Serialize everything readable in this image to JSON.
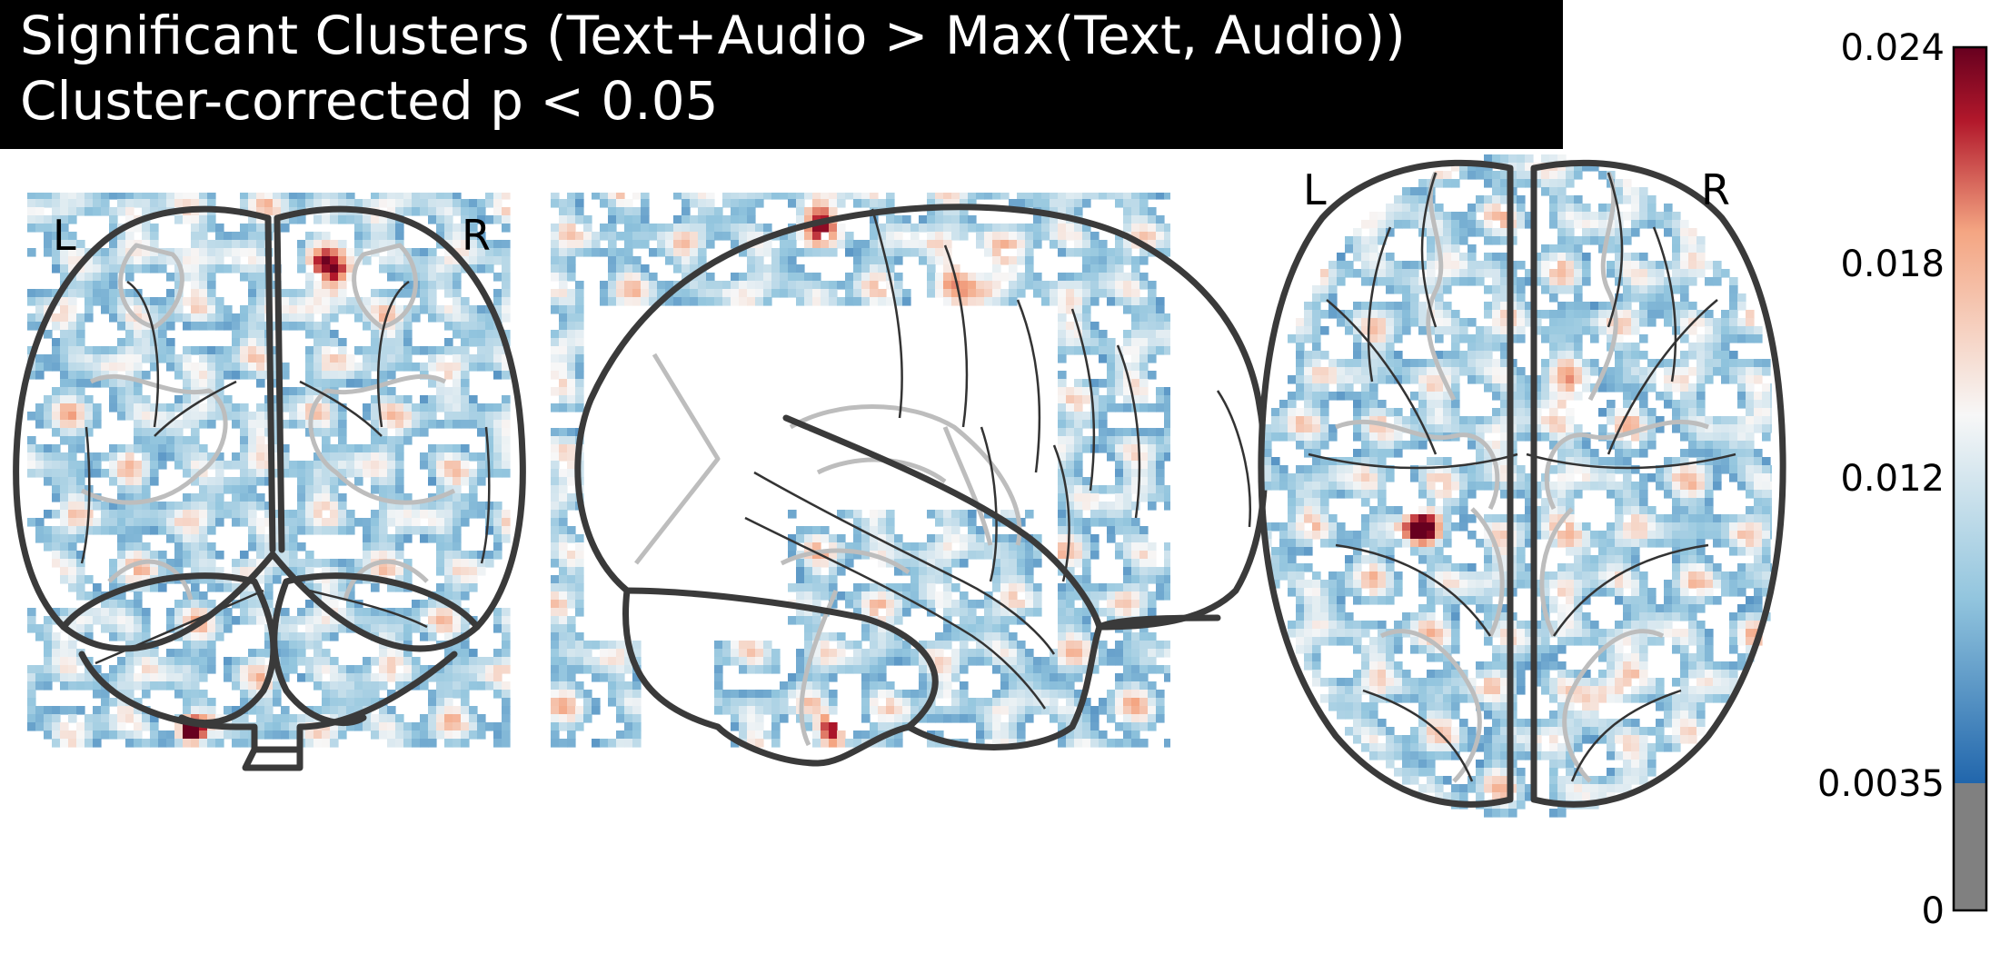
{
  "title": {
    "line1": "Significant Clusters (Text+Audio > Max(Text, Audio))",
    "line2": "Cluster-corrected p < 0.05"
  },
  "views": {
    "coronal": {
      "left_label": "L",
      "right_label": "R"
    },
    "sagittal": {},
    "axial": {
      "left_label": "L",
      "right_label": "R"
    }
  },
  "colorbar": {
    "colormap": "RdBu_r",
    "threshold": 0.0035,
    "below_threshold_color": "#808080",
    "ticks": [
      "0.024",
      "0.018",
      "0.012",
      "0.0035",
      "0"
    ],
    "min": 0,
    "max": 0.024
  },
  "colors": {
    "low": "#2166ac",
    "mid": "#f7f7f7",
    "high": "#67001f"
  }
}
